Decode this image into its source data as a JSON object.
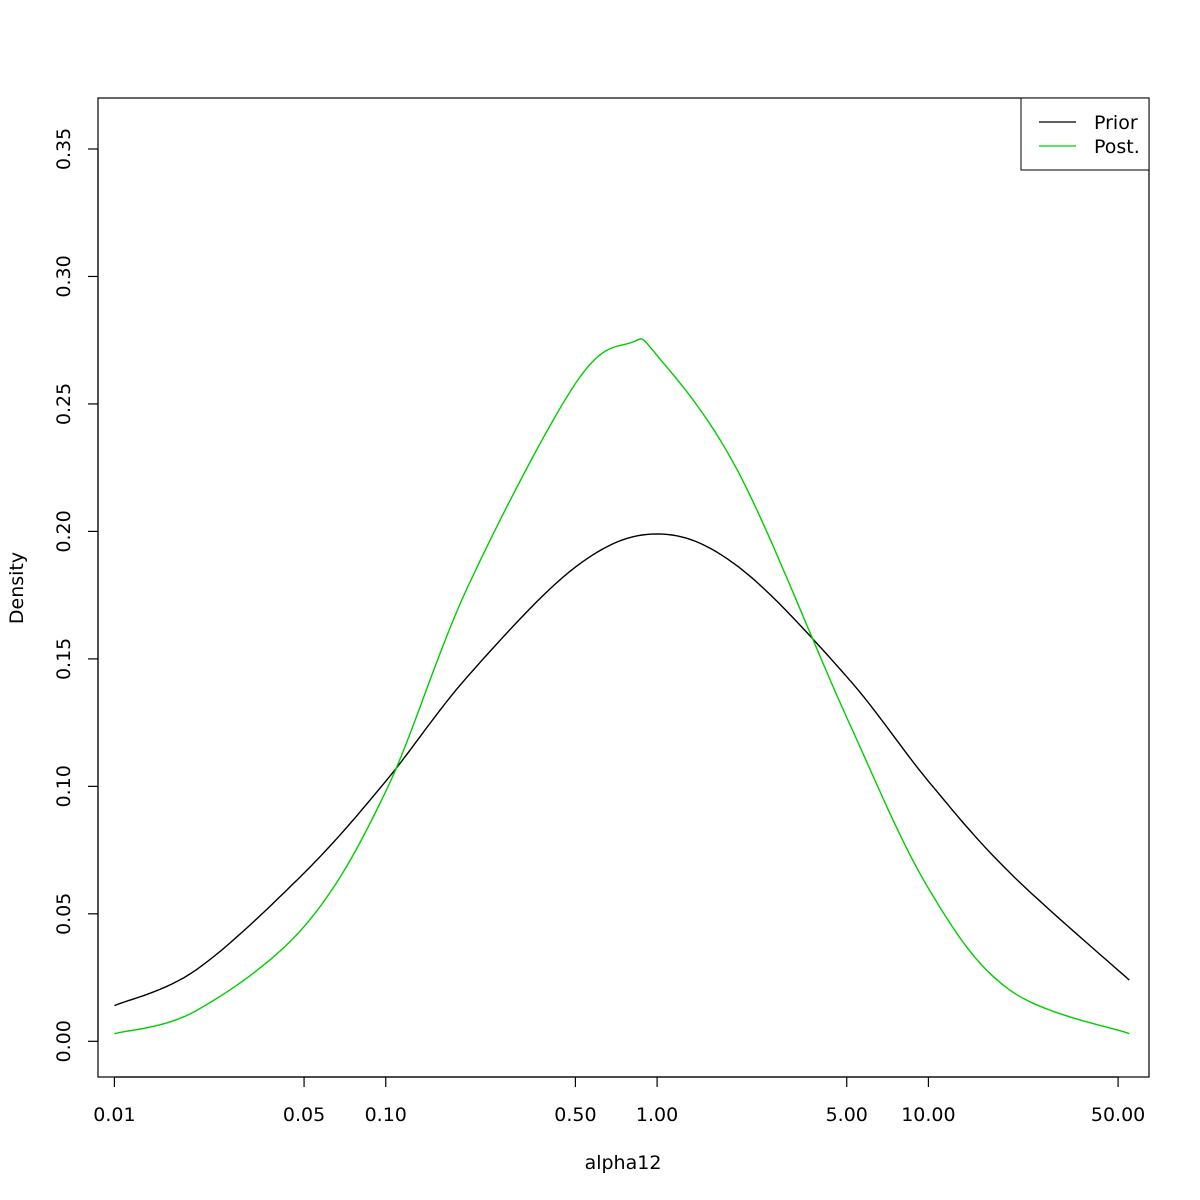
{
  "chart_data": {
    "type": "line",
    "title": "",
    "xlabel": "alpha12",
    "ylabel": "Density",
    "x_scale": "log",
    "xlim": [
      0.01,
      55
    ],
    "ylim": [
      -0.014,
      0.37
    ],
    "x_ticks": [
      {
        "value": 0.01,
        "label": "0.01"
      },
      {
        "value": 0.05,
        "label": "0.05"
      },
      {
        "value": 0.1,
        "label": "0.10"
      },
      {
        "value": 0.5,
        "label": "0.50"
      },
      {
        "value": 1,
        "label": "1.00"
      },
      {
        "value": 5,
        "label": "5.00"
      },
      {
        "value": 10,
        "label": "10.00"
      },
      {
        "value": 50,
        "label": "50.00"
      }
    ],
    "y_ticks": [
      {
        "value": 0.0,
        "label": "0.00"
      },
      {
        "value": 0.05,
        "label": "0.05"
      },
      {
        "value": 0.1,
        "label": "0.10"
      },
      {
        "value": 0.15,
        "label": "0.15"
      },
      {
        "value": 0.2,
        "label": "0.20"
      },
      {
        "value": 0.25,
        "label": "0.25"
      },
      {
        "value": 0.3,
        "label": "0.30"
      },
      {
        "value": 0.35,
        "label": "0.35"
      }
    ],
    "grid": false,
    "legend_position": "top-right",
    "series": [
      {
        "name": "Prior",
        "color": "#000000",
        "x": [
          0.01,
          0.02,
          0.05,
          0.1,
          0.2,
          0.5,
          1.0,
          2.0,
          5.0,
          10.0,
          20.0,
          55.0
        ],
        "y": [
          0.014,
          0.028,
          0.066,
          0.102,
          0.143,
          0.186,
          0.199,
          0.186,
          0.143,
          0.102,
          0.066,
          0.024
        ]
      },
      {
        "name": "Post.",
        "color": "#00cd00",
        "x": [
          0.01,
          0.02,
          0.05,
          0.1,
          0.2,
          0.5,
          0.8,
          1.0,
          2.0,
          5.0,
          10.0,
          20.0,
          55.0
        ],
        "y": [
          0.003,
          0.012,
          0.045,
          0.098,
          0.178,
          0.258,
          0.274,
          0.269,
          0.223,
          0.127,
          0.06,
          0.02,
          0.003
        ]
      }
    ]
  }
}
